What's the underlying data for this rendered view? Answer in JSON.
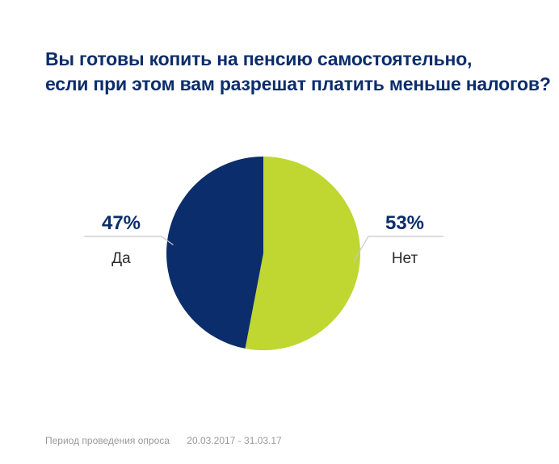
{
  "title_lines": [
    "Вы готовы копить на пенсию самостоятельно,",
    "если при этом вам разрешат платить меньше налогов?"
  ],
  "colors": {
    "title": "#0c2d6b",
    "yes": "#0c2d6b",
    "no": "#bfd730",
    "leader": "#c8c8c8",
    "footer": "#9a9a9a"
  },
  "chart_data": {
    "type": "pie",
    "title": "Вы готовы копить на пенсию самостоятельно, если при этом вам разрешат платить меньше налогов?",
    "slices": [
      {
        "label": "Нет",
        "value": 53,
        "value_label": "53%",
        "color": "#bfd730"
      },
      {
        "label": "Да",
        "value": 47,
        "value_label": "47%",
        "color": "#0c2d6b"
      }
    ],
    "start_angle": "12 o'clock",
    "direction": "clockwise"
  },
  "footer": {
    "period_label": "Период проведения опроса",
    "period_value": "20.03.2017 - 31.03.17"
  }
}
